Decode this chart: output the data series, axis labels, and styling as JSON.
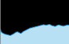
{
  "x": [
    0,
    1,
    2,
    3,
    4,
    5,
    6,
    7,
    8,
    9,
    10,
    11,
    12,
    13,
    14,
    15,
    16,
    17,
    18,
    19,
    20,
    21,
    22,
    23,
    24,
    25,
    26,
    27,
    28,
    29,
    30,
    31,
    32,
    33,
    34,
    35,
    36,
    37,
    38,
    39,
    40,
    41,
    42,
    43,
    44,
    45,
    46,
    47,
    48,
    49,
    50,
    51,
    52,
    53,
    54,
    55,
    56,
    57,
    58,
    59,
    60
  ],
  "y": [
    0.55,
    0.42,
    0.38,
    0.36,
    0.34,
    0.33,
    0.32,
    0.31,
    0.3,
    0.29,
    0.31,
    0.33,
    0.35,
    0.38,
    0.4,
    0.42,
    0.4,
    0.38,
    0.36,
    0.38,
    0.42,
    0.44,
    0.46,
    0.48,
    0.5,
    0.52,
    0.54,
    0.55,
    0.56,
    0.57,
    0.58,
    0.59,
    0.6,
    0.61,
    0.62,
    0.63,
    0.64,
    0.65,
    0.66,
    0.65,
    0.64,
    0.65,
    0.66,
    0.67,
    0.65,
    0.63,
    0.62,
    0.61,
    0.6,
    0.62,
    0.64,
    0.65,
    0.64,
    0.63,
    0.62,
    0.61,
    0.62,
    0.63,
    0.64,
    0.65,
    0.64
  ],
  "line_color": "#1a8ccc",
  "fill_color": "#b8e0f5",
  "bg_color": "#000000",
  "plot_bg_color": "#000000",
  "ylim": [
    0.0,
    1.5
  ],
  "xlim": [
    0,
    60
  ],
  "left_spine_color": "#888888"
}
